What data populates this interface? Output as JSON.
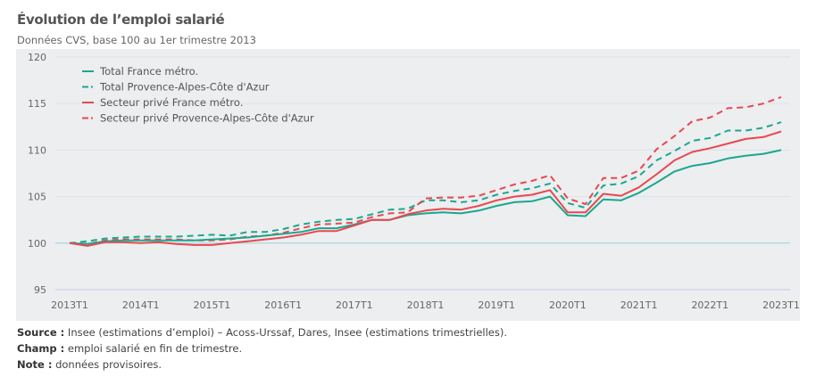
{
  "title": "Évolution de l’emploi salarié",
  "subtitle": "Données CVS, base 100 au 1er trimestre 2013",
  "chart_data": {
    "type": "line",
    "title": "Évolution de l’emploi salarié",
    "subtitle": "Données CVS, base 100 au 1er trimestre 2013",
    "xlabel": "",
    "ylabel": "",
    "ylim": [
      95,
      120
    ],
    "yticks": [
      95,
      100,
      105,
      110,
      115,
      120
    ],
    "xticks": [
      "2013T1",
      "2014T1",
      "2015T1",
      "2016T1",
      "2017T1",
      "2018T1",
      "2019T1",
      "2020T1",
      "2021T1",
      "2022T1",
      "2023T1"
    ],
    "x_start": "2013T1",
    "x_end": "2023T1",
    "frequency": "quarterly",
    "grid": true,
    "legend_position": "top-left",
    "series": [
      {
        "name": "Total France métro.",
        "color": "#1ba78f",
        "dash": false,
        "values": [
          100.0,
          99.9,
          100.2,
          100.3,
          100.3,
          100.3,
          100.3,
          100.3,
          100.4,
          100.5,
          100.6,
          100.8,
          101.0,
          101.2,
          101.6,
          101.6,
          102.0,
          102.5,
          102.5,
          103.0,
          103.2,
          103.3,
          103.2,
          103.5,
          104.0,
          104.4,
          104.5,
          105.0,
          103.0,
          102.9,
          104.7,
          104.6,
          105.4,
          106.5,
          107.7,
          108.3,
          108.6,
          109.1,
          109.4,
          109.6,
          110.0
        ]
      },
      {
        "name": "Total Provence-Alpes-Côte d'Azur",
        "color": "#1ba78f",
        "dash": true,
        "values": [
          100.0,
          100.2,
          100.5,
          100.6,
          100.7,
          100.7,
          100.7,
          100.8,
          100.9,
          100.8,
          101.2,
          101.2,
          101.5,
          102.0,
          102.3,
          102.5,
          102.6,
          103.1,
          103.6,
          103.7,
          104.6,
          104.6,
          104.4,
          104.6,
          105.2,
          105.6,
          105.9,
          106.4,
          104.3,
          103.8,
          106.2,
          106.4,
          107.2,
          108.9,
          109.9,
          111.0,
          111.3,
          112.1,
          112.1,
          112.4,
          113.0
        ]
      },
      {
        "name": "Secteur privé France métro.",
        "color": "#e8484f",
        "dash": false,
        "values": [
          100.0,
          99.7,
          100.1,
          100.1,
          100.0,
          100.1,
          99.9,
          99.8,
          99.8,
          100.0,
          100.2,
          100.4,
          100.6,
          100.9,
          101.3,
          101.3,
          101.9,
          102.5,
          102.5,
          103.1,
          103.5,
          103.7,
          103.6,
          104.0,
          104.6,
          105.0,
          105.2,
          105.7,
          103.3,
          103.3,
          105.3,
          105.1,
          106.0,
          107.4,
          108.9,
          109.8,
          110.2,
          110.7,
          111.2,
          111.4,
          112.0
        ]
      },
      {
        "name": "Secteur privé Provence-Alpes-Côte d'Azur",
        "color": "#e8484f",
        "dash": true,
        "values": [
          100.0,
          99.9,
          100.3,
          100.4,
          100.4,
          100.4,
          100.4,
          100.3,
          100.3,
          100.4,
          100.7,
          100.8,
          101.1,
          101.6,
          102.0,
          102.1,
          102.2,
          102.8,
          103.2,
          103.3,
          104.8,
          104.9,
          104.9,
          105.1,
          105.7,
          106.3,
          106.7,
          107.3,
          104.8,
          104.2,
          107.0,
          107.0,
          107.8,
          110.1,
          111.5,
          113.1,
          113.5,
          114.5,
          114.6,
          115.0,
          115.7
        ]
      }
    ]
  },
  "footer": {
    "source_label": "Source :",
    "source_text": " Insee (estimations d’emploi) – Acoss-Urssaf, Dares, Insee (estimations trimestrielles).",
    "champ_label": "Champ :",
    "champ_text": " emploi salarié en fin de trimestre.",
    "note_label": "Note :",
    "note_text": " données provisoires."
  }
}
